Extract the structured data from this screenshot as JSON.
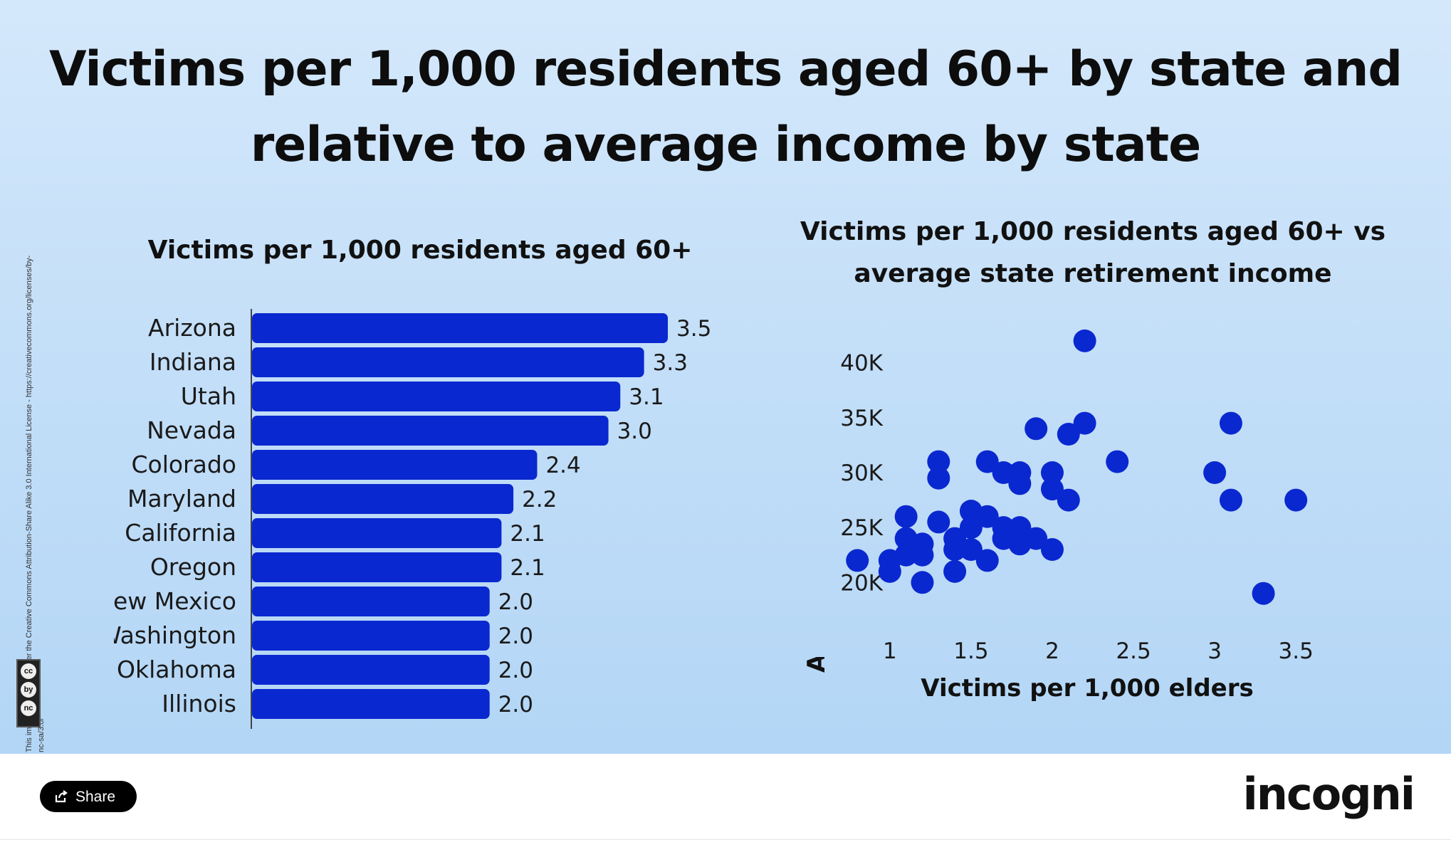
{
  "title": "Victims per 1,000 residents aged 60+ by state and relative to average income by state",
  "footer": {
    "share_label": "Share",
    "logo_text": "incogni"
  },
  "license_text": "This image is licensed under the Creative Commons Attribution-Share Alike 3.0 International License - https://creativecommons.org/licenses/by-nc-sa/3.0/",
  "colors": {
    "accent": "#0a28d0",
    "background": "#c4dff8"
  },
  "chart_data": [
    {
      "type": "bar",
      "orientation": "horizontal",
      "title": "Victims per 1,000 residents aged 60+",
      "categories": [
        "Arizona",
        "Indiana",
        "Utah",
        "Nevada",
        "Colorado",
        "Maryland",
        "California",
        "Oregon",
        "New Mexico",
        "Washington",
        "Oklahoma",
        "Illinois"
      ],
      "values": [
        3.5,
        3.3,
        3.1,
        3.0,
        2.4,
        2.2,
        2.1,
        2.1,
        2.0,
        2.0,
        2.0,
        2.0
      ],
      "value_labels": [
        "3.5",
        "3.3",
        "3.1",
        "3.0",
        "2.4",
        "2.2",
        "2.1",
        "2.1",
        "2.0",
        "2.0",
        "2.0",
        "2.0"
      ],
      "xlim": [
        0,
        3.5
      ],
      "color": "#0a28d0"
    },
    {
      "type": "scatter",
      "title": "Victims per 1,000 residents aged 60+ vs average state retirement income",
      "xlabel": "Victims per 1,000 elders",
      "ylabel": "Average retirement income",
      "xticks": [
        1,
        1.5,
        2,
        2.5,
        3,
        3.5
      ],
      "xtick_labels": [
        "1",
        "1.5",
        "2",
        "2.5",
        "3",
        "3.5"
      ],
      "yticks": [
        20000,
        25000,
        30000,
        35000,
        40000
      ],
      "ytick_labels": [
        "20K",
        "25K",
        "30K",
        "35K",
        "40K"
      ],
      "xlim": [
        0.65,
        3.85
      ],
      "ylim": [
        16000,
        44000
      ],
      "color": "#0a28d0",
      "points": [
        [
          0.8,
          22000
        ],
        [
          1.0,
          22000
        ],
        [
          1.0,
          21000
        ],
        [
          1.1,
          24000
        ],
        [
          1.1,
          22500
        ],
        [
          1.1,
          26000
        ],
        [
          1.2,
          23500
        ],
        [
          1.2,
          22500
        ],
        [
          1.2,
          20000
        ],
        [
          1.3,
          31000
        ],
        [
          1.3,
          29500
        ],
        [
          1.3,
          25500
        ],
        [
          1.4,
          23000
        ],
        [
          1.4,
          24000
        ],
        [
          1.4,
          21000
        ],
        [
          1.5,
          25000
        ],
        [
          1.5,
          23000
        ],
        [
          1.5,
          26500
        ],
        [
          1.6,
          26000
        ],
        [
          1.6,
          31000
        ],
        [
          1.6,
          22000
        ],
        [
          1.7,
          25000
        ],
        [
          1.7,
          24000
        ],
        [
          1.7,
          30000
        ],
        [
          1.8,
          30000
        ],
        [
          1.8,
          29000
        ],
        [
          1.8,
          25000
        ],
        [
          1.8,
          23500
        ],
        [
          1.9,
          24000
        ],
        [
          1.9,
          34000
        ],
        [
          2.0,
          30000
        ],
        [
          2.0,
          28500
        ],
        [
          2.0,
          23000
        ],
        [
          2.1,
          27500
        ],
        [
          2.1,
          33500
        ],
        [
          2.2,
          34500
        ],
        [
          2.2,
          42000
        ],
        [
          2.4,
          31000
        ],
        [
          3.0,
          30000
        ],
        [
          3.1,
          27500
        ],
        [
          3.1,
          34500
        ],
        [
          3.3,
          19000
        ],
        [
          3.5,
          27500
        ]
      ]
    }
  ]
}
